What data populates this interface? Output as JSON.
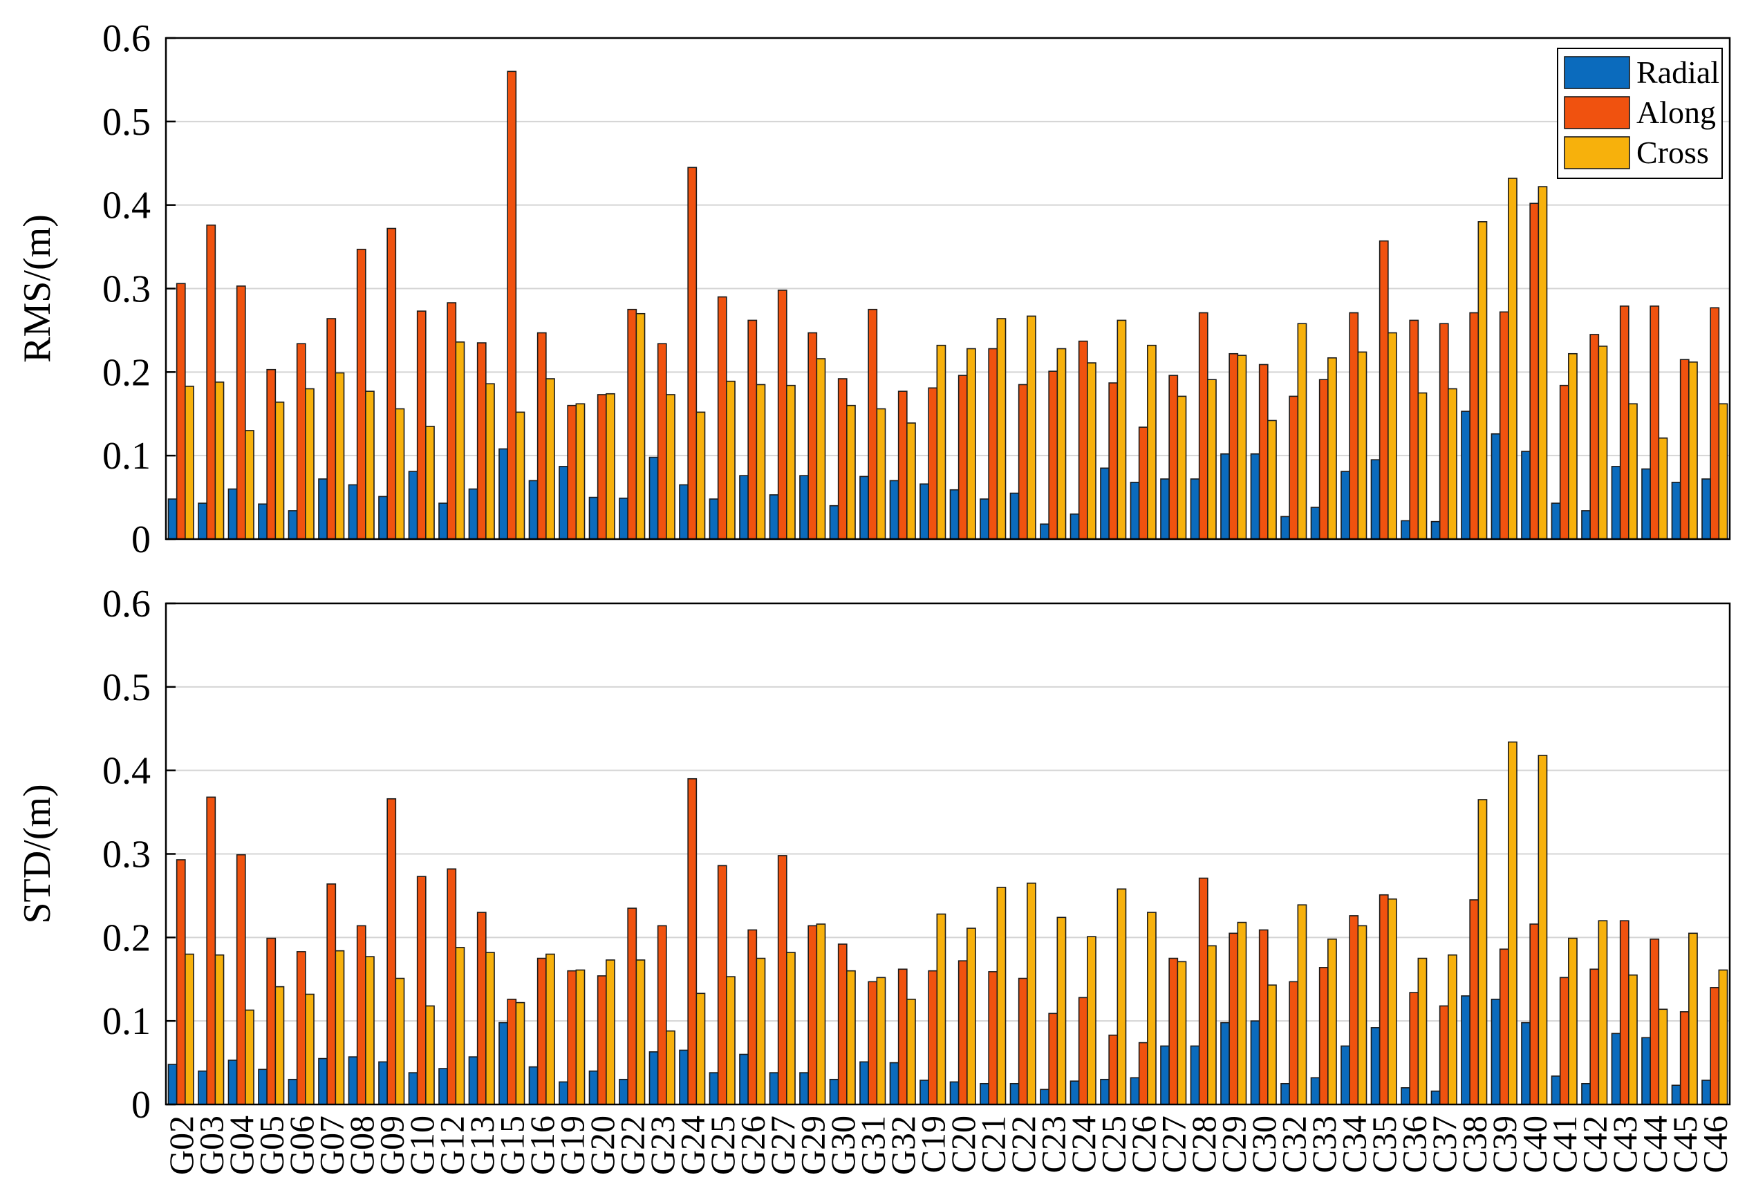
{
  "colors": {
    "Radial": "#0b6bbd",
    "Along": "#f0520f",
    "Cross": "#f7b10c",
    "grid": "#d4d4d4"
  },
  "chart_data": [
    {
      "type": "bar",
      "ylabel": "RMS/(m)",
      "ylim": [
        0,
        0.6
      ],
      "yticks": [
        "0",
        "0.1",
        "0.2",
        "0.3",
        "0.4",
        "0.5",
        "0.6"
      ],
      "grid": true,
      "legend": {
        "position": "top-right",
        "entries": [
          "Radial",
          "Along",
          "Cross"
        ]
      },
      "categories": [
        "G02",
        "G03",
        "G04",
        "G05",
        "G06",
        "G07",
        "G08",
        "G09",
        "G10",
        "G12",
        "G13",
        "G15",
        "G16",
        "G19",
        "G20",
        "G22",
        "G23",
        "G24",
        "G25",
        "G26",
        "G27",
        "G29",
        "G30",
        "G31",
        "G32",
        "C19",
        "C20",
        "C21",
        "C22",
        "C23",
        "C24",
        "C25",
        "C26",
        "C27",
        "C28",
        "C29",
        "C30",
        "C32",
        "C33",
        "C34",
        "C35",
        "C36",
        "C37",
        "C38",
        "C39",
        "C40",
        "C41",
        "C42",
        "C43",
        "C44",
        "C45",
        "C46"
      ],
      "series": [
        {
          "name": "Radial",
          "values": [
            0.048,
            0.043,
            0.06,
            0.042,
            0.034,
            0.072,
            0.065,
            0.051,
            0.081,
            0.043,
            0.06,
            0.108,
            0.07,
            0.087,
            0.05,
            0.049,
            0.098,
            0.065,
            0.048,
            0.076,
            0.053,
            0.076,
            0.04,
            0.075,
            0.07,
            0.066,
            0.059,
            0.048,
            0.055,
            0.018,
            0.03,
            0.085,
            0.068,
            0.072,
            0.072,
            0.102,
            0.102,
            0.027,
            0.038,
            0.081,
            0.095,
            0.022,
            0.021,
            0.153,
            0.126,
            0.105,
            0.043,
            0.034,
            0.087,
            0.084,
            0.068,
            0.072
          ]
        },
        {
          "name": "Along",
          "values": [
            0.306,
            0.376,
            0.303,
            0.203,
            0.234,
            0.264,
            0.347,
            0.372,
            0.273,
            0.283,
            0.235,
            0.56,
            0.247,
            0.16,
            0.173,
            0.275,
            0.234,
            0.445,
            0.29,
            0.262,
            0.298,
            0.247,
            0.192,
            0.275,
            0.177,
            0.181,
            0.196,
            0.228,
            0.185,
            0.201,
            0.237,
            0.187,
            0.134,
            0.196,
            0.271,
            0.222,
            0.209,
            0.171,
            0.191,
            0.271,
            0.357,
            0.262,
            0.258,
            0.271,
            0.272,
            0.402,
            0.184,
            0.245,
            0.279,
            0.279,
            0.215,
            0.277
          ]
        },
        {
          "name": "Cross",
          "values": [
            0.183,
            0.188,
            0.13,
            0.164,
            0.18,
            0.199,
            0.177,
            0.156,
            0.135,
            0.236,
            0.186,
            0.152,
            0.192,
            0.162,
            0.174,
            0.27,
            0.173,
            0.152,
            0.189,
            0.185,
            0.184,
            0.216,
            0.16,
            0.156,
            0.139,
            0.232,
            0.228,
            0.264,
            0.267,
            0.228,
            0.211,
            0.262,
            0.232,
            0.171,
            0.191,
            0.22,
            0.142,
            0.258,
            0.217,
            0.224,
            0.247,
            0.175,
            0.18,
            0.38,
            0.432,
            0.422,
            0.222,
            0.231,
            0.162,
            0.121,
            0.212,
            0.162
          ]
        }
      ]
    },
    {
      "type": "bar",
      "ylabel": "STD/(m)",
      "ylim": [
        0,
        0.6
      ],
      "yticks": [
        "0",
        "0.1",
        "0.2",
        "0.3",
        "0.4",
        "0.5",
        "0.6"
      ],
      "grid": true,
      "categories": [
        "G02",
        "G03",
        "G04",
        "G05",
        "G06",
        "G07",
        "G08",
        "G09",
        "G10",
        "G12",
        "G13",
        "G15",
        "G16",
        "G19",
        "G20",
        "G22",
        "G23",
        "G24",
        "G25",
        "G26",
        "G27",
        "G29",
        "G30",
        "G31",
        "G32",
        "C19",
        "C20",
        "C21",
        "C22",
        "C23",
        "C24",
        "C25",
        "C26",
        "C27",
        "C28",
        "C29",
        "C30",
        "C32",
        "C33",
        "C34",
        "C35",
        "C36",
        "C37",
        "C38",
        "C39",
        "C40",
        "C41",
        "C42",
        "C43",
        "C44",
        "C45",
        "C46"
      ],
      "series": [
        {
          "name": "Radial",
          "values": [
            0.048,
            0.04,
            0.053,
            0.042,
            0.03,
            0.055,
            0.057,
            0.051,
            0.038,
            0.043,
            0.057,
            0.098,
            0.045,
            0.027,
            0.04,
            0.03,
            0.063,
            0.065,
            0.038,
            0.06,
            0.038,
            0.038,
            0.03,
            0.051,
            0.05,
            0.029,
            0.027,
            0.025,
            0.025,
            0.018,
            0.028,
            0.03,
            0.032,
            0.07,
            0.07,
            0.098,
            0.1,
            0.025,
            0.032,
            0.07,
            0.092,
            0.02,
            0.016,
            0.13,
            0.126,
            0.098,
            0.034,
            0.025,
            0.085,
            0.08,
            0.023,
            0.029
          ]
        },
        {
          "name": "Along",
          "values": [
            0.293,
            0.368,
            0.299,
            0.199,
            0.183,
            0.264,
            0.214,
            0.366,
            0.273,
            0.282,
            0.23,
            0.126,
            0.175,
            0.16,
            0.154,
            0.235,
            0.214,
            0.39,
            0.286,
            0.209,
            0.298,
            0.214,
            0.192,
            0.147,
            0.162,
            0.16,
            0.172,
            0.159,
            0.151,
            0.109,
            0.128,
            0.083,
            0.074,
            0.175,
            0.271,
            0.205,
            0.209,
            0.147,
            0.164,
            0.226,
            0.251,
            0.134,
            0.118,
            0.245,
            0.186,
            0.216,
            0.152,
            0.162,
            0.22,
            0.198,
            0.111,
            0.14
          ]
        },
        {
          "name": "Cross",
          "values": [
            0.18,
            0.179,
            0.113,
            0.141,
            0.132,
            0.184,
            0.177,
            0.151,
            0.118,
            0.188,
            0.182,
            0.122,
            0.18,
            0.161,
            0.173,
            0.173,
            0.088,
            0.133,
            0.153,
            0.175,
            0.182,
            0.216,
            0.16,
            0.152,
            0.126,
            0.228,
            0.211,
            0.26,
            0.265,
            0.224,
            0.201,
            0.258,
            0.23,
            0.171,
            0.19,
            0.218,
            0.143,
            0.239,
            0.198,
            0.214,
            0.246,
            0.175,
            0.179,
            0.365,
            0.434,
            0.418,
            0.199,
            0.22,
            0.155,
            0.114,
            0.205,
            0.161
          ]
        }
      ]
    }
  ]
}
